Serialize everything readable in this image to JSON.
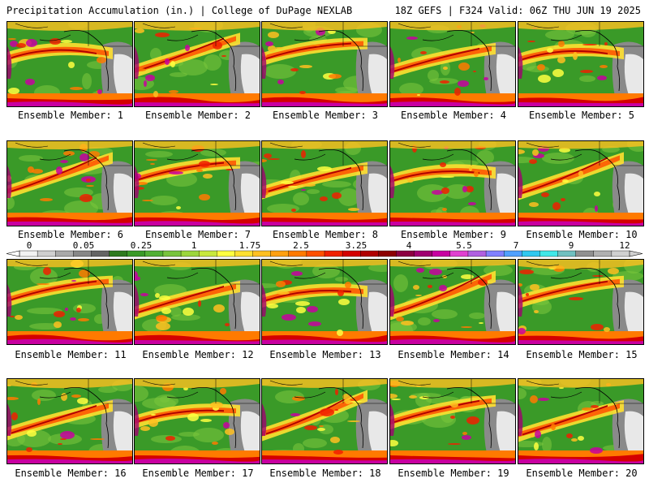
{
  "header": {
    "left": "Precipitation Accumulation (in.) | College of DuPage NEXLAB",
    "right": "18Z GEFS | F324 Valid: 06Z THU JUN 19 2025"
  },
  "members": [
    "Ensemble Member: 1",
    "Ensemble Member: 2",
    "Ensemble Member: 3",
    "Ensemble Member: 4",
    "Ensemble Member: 5",
    "Ensemble Member: 6",
    "Ensemble Member: 7",
    "Ensemble Member: 8",
    "Ensemble Member: 9",
    "Ensemble Member: 10",
    "Ensemble Member: 11",
    "Ensemble Member: 12",
    "Ensemble Member: 13",
    "Ensemble Member: 14",
    "Ensemble Member: 15",
    "Ensemble Member: 16",
    "Ensemble Member: 17",
    "Ensemble Member: 18",
    "Ensemble Member: 19",
    "Ensemble Member: 20"
  ],
  "colorbar": {
    "labels": [
      "0",
      "0.05",
      "0.25",
      "1",
      "1.75",
      "2.5",
      "3.25",
      "4",
      "5.5",
      "7",
      "9",
      "12"
    ],
    "colors": [
      "#f2f2f2",
      "#cfcfcf",
      "#a9a9a9",
      "#878787",
      "#646464",
      "#2e7a1e",
      "#3a9a28",
      "#52b034",
      "#78c43c",
      "#9cd63c",
      "#c8e83c",
      "#ffff40",
      "#ffe030",
      "#ffc020",
      "#ffa010",
      "#ff7a00",
      "#ff5000",
      "#f02000",
      "#d40000",
      "#b00000",
      "#8c0000",
      "#8c0040",
      "#a00070",
      "#c800a0",
      "#e040d0",
      "#b060e0",
      "#8080ff",
      "#50a0ff",
      "#30c8f0",
      "#40e8e8",
      "#70c0c0",
      "#909090",
      "#b0b0b0",
      "#d0d0d0"
    ]
  }
}
